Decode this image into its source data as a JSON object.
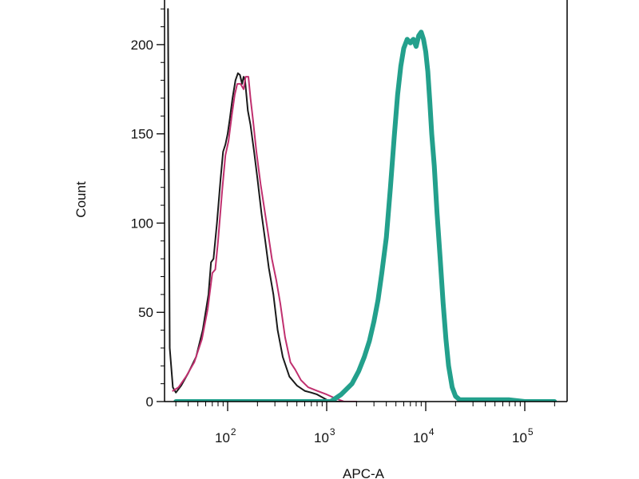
{
  "chart_data": {
    "type": "line",
    "title": "",
    "xlabel": "APC-A",
    "ylabel": "Count",
    "x_scale": "log",
    "xlim": [
      25,
      200000
    ],
    "ylim": [
      0,
      225
    ],
    "grid": false,
    "legend": "none",
    "y_ticks": [
      0,
      50,
      100,
      150,
      200
    ],
    "x_ticks": [
      {
        "value": 100,
        "base": "10",
        "exp": "2"
      },
      {
        "value": 1000,
        "base": "10",
        "exp": "3"
      },
      {
        "value": 10000,
        "base": "10",
        "exp": "4"
      },
      {
        "value": 100000,
        "base": "10",
        "exp": "5"
      }
    ],
    "series": [
      {
        "color": "#1a1a1a",
        "width": 2,
        "points": [
          [
            25,
            220
          ],
          [
            26,
            30
          ],
          [
            28,
            8
          ],
          [
            30,
            5
          ],
          [
            34,
            9
          ],
          [
            40,
            16
          ],
          [
            48,
            25
          ],
          [
            56,
            40
          ],
          [
            64,
            60
          ],
          [
            68,
            78
          ],
          [
            72,
            80
          ],
          [
            78,
            100
          ],
          [
            85,
            125
          ],
          [
            90,
            140
          ],
          [
            95,
            144
          ],
          [
            100,
            150
          ],
          [
            105,
            158
          ],
          [
            112,
            170
          ],
          [
            120,
            180
          ],
          [
            127,
            184
          ],
          [
            133,
            183
          ],
          [
            140,
            178
          ],
          [
            145,
            182
          ],
          [
            150,
            180
          ],
          [
            160,
            163
          ],
          [
            170,
            155
          ],
          [
            185,
            140
          ],
          [
            200,
            125
          ],
          [
            220,
            105
          ],
          [
            240,
            90
          ],
          [
            260,
            75
          ],
          [
            290,
            60
          ],
          [
            320,
            40
          ],
          [
            360,
            25
          ],
          [
            420,
            14
          ],
          [
            500,
            9
          ],
          [
            600,
            6
          ],
          [
            700,
            5
          ],
          [
            800,
            4
          ],
          [
            1000,
            1
          ],
          [
            1200,
            0
          ],
          [
            1500,
            0
          ]
        ]
      },
      {
        "color": "#c0306f",
        "width": 2,
        "points": [
          [
            28,
            6
          ],
          [
            32,
            8
          ],
          [
            38,
            14
          ],
          [
            46,
            22
          ],
          [
            55,
            35
          ],
          [
            63,
            52
          ],
          [
            70,
            72
          ],
          [
            75,
            74
          ],
          [
            80,
            90
          ],
          [
            88,
            118
          ],
          [
            95,
            138
          ],
          [
            102,
            146
          ],
          [
            110,
            160
          ],
          [
            118,
            172
          ],
          [
            125,
            178
          ],
          [
            135,
            178
          ],
          [
            145,
            175
          ],
          [
            152,
            182
          ],
          [
            162,
            182
          ],
          [
            170,
            170
          ],
          [
            180,
            158
          ],
          [
            195,
            140
          ],
          [
            215,
            122
          ],
          [
            235,
            108
          ],
          [
            255,
            95
          ],
          [
            280,
            80
          ],
          [
            310,
            68
          ],
          [
            340,
            55
          ],
          [
            380,
            36
          ],
          [
            430,
            22
          ],
          [
            480,
            18
          ],
          [
            550,
            12
          ],
          [
            650,
            8
          ],
          [
            800,
            6
          ],
          [
            1000,
            4
          ],
          [
            1200,
            2
          ],
          [
            1500,
            0
          ],
          [
            2000,
            0
          ]
        ]
      },
      {
        "color": "#23a08c",
        "width": 6,
        "points": [
          [
            30,
            0
          ],
          [
            200,
            0
          ],
          [
            700,
            0
          ],
          [
            1000,
            0
          ],
          [
            1100,
            0
          ],
          [
            1400,
            4
          ],
          [
            1800,
            10
          ],
          [
            2100,
            17
          ],
          [
            2400,
            25
          ],
          [
            2700,
            34
          ],
          [
            3000,
            45
          ],
          [
            3300,
            57
          ],
          [
            3600,
            72
          ],
          [
            4000,
            92
          ],
          [
            4400,
            120
          ],
          [
            4800,
            148
          ],
          [
            5200,
            172
          ],
          [
            5600,
            188
          ],
          [
            6000,
            198
          ],
          [
            6500,
            203
          ],
          [
            7000,
            201
          ],
          [
            7500,
            203
          ],
          [
            8000,
            199
          ],
          [
            8500,
            205
          ],
          [
            9000,
            207
          ],
          [
            9500,
            203
          ],
          [
            10000,
            196
          ],
          [
            10500,
            185
          ],
          [
            11000,
            168
          ],
          [
            11500,
            150
          ],
          [
            12200,
            132
          ],
          [
            13000,
            106
          ],
          [
            14000,
            80
          ],
          [
            15000,
            55
          ],
          [
            16000,
            35
          ],
          [
            17000,
            20
          ],
          [
            18500,
            8
          ],
          [
            20000,
            3
          ],
          [
            22000,
            1
          ],
          [
            30000,
            1
          ],
          [
            50000,
            1
          ],
          [
            70000,
            1
          ],
          [
            100000,
            0
          ],
          [
            200000,
            0
          ]
        ]
      }
    ]
  }
}
